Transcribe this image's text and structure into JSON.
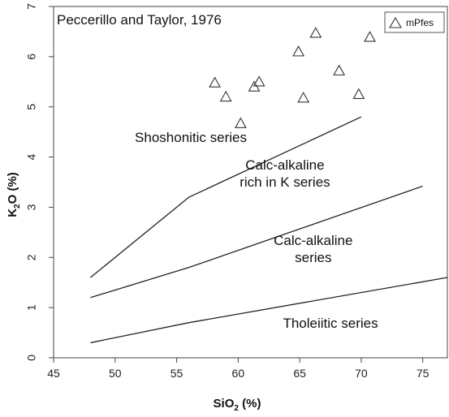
{
  "chart_data": {
    "type": "scatter",
    "title": "Peccerillo and Taylor, 1976",
    "xlabel": {
      "main": "SiO",
      "sub": "2",
      "unit": " (%)"
    },
    "ylabel": {
      "main": "K",
      "sub": "2",
      "tail": "O (%)"
    },
    "xlim": [
      45,
      77
    ],
    "ylim": [
      0,
      7
    ],
    "xticks": [
      45,
      50,
      55,
      60,
      65,
      70,
      75
    ],
    "yticks": [
      0,
      1,
      2,
      3,
      4,
      5,
      6,
      7
    ],
    "grid": false,
    "legend_position": "top-right",
    "series": [
      {
        "name": "mPfes",
        "marker": "triangle-open",
        "color": "#333333",
        "points": [
          {
            "x": 58.1,
            "y": 5.48
          },
          {
            "x": 59.0,
            "y": 5.2
          },
          {
            "x": 60.2,
            "y": 4.67
          },
          {
            "x": 61.3,
            "y": 5.4
          },
          {
            "x": 61.7,
            "y": 5.5
          },
          {
            "x": 64.9,
            "y": 6.1
          },
          {
            "x": 65.3,
            "y": 5.18
          },
          {
            "x": 66.3,
            "y": 6.47
          },
          {
            "x": 68.2,
            "y": 5.72
          },
          {
            "x": 69.8,
            "y": 5.25
          },
          {
            "x": 70.7,
            "y": 6.39
          }
        ]
      }
    ],
    "boundary_lines": [
      {
        "points": [
          [
            48,
            1.6
          ],
          [
            56,
            3.2
          ],
          [
            70,
            4.8
          ]
        ]
      },
      {
        "points": [
          [
            48,
            1.2
          ],
          [
            56,
            1.8
          ],
          [
            75,
            3.42
          ]
        ]
      },
      {
        "points": [
          [
            48,
            0.3
          ],
          [
            56,
            0.7
          ],
          [
            77,
            1.6
          ]
        ]
      }
    ],
    "region_labels": [
      {
        "lines": [
          "Shoshonitic series"
        ],
        "x": 51.6,
        "y": 4.3,
        "anchor": "start"
      },
      {
        "lines": [
          "Calc-alkaline",
          "rich in K series"
        ],
        "x": 63.8,
        "y": 3.75,
        "anchor": "middle"
      },
      {
        "lines": [
          "Calc-alkaline",
          "series"
        ],
        "x": 66.1,
        "y": 2.25,
        "anchor": "middle"
      },
      {
        "lines": [
          "Tholeiitic series"
        ],
        "x": 67.5,
        "y": 0.6,
        "anchor": "middle"
      }
    ]
  }
}
